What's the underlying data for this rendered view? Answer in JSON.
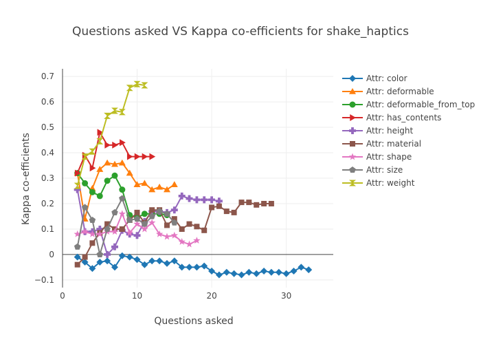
{
  "chart_data": {
    "type": "line",
    "title": "Questions asked VS Kappa co-efficients for shake_haptics",
    "xlabel": "Questions asked",
    "ylabel": "Kappa co-efficients",
    "xlim": [
      0,
      36.3
    ],
    "ylim": [
      -0.13,
      0.73
    ],
    "xticks": [
      0,
      10,
      20,
      30
    ],
    "yticks": [
      -0.1,
      0,
      0.1,
      0.2,
      0.3,
      0.4,
      0.5,
      0.6,
      0.7
    ],
    "xtick_labels": [
      "0",
      "10",
      "20",
      "30"
    ],
    "ytick_labels": [
      "−0.1",
      "0",
      "0.1",
      "0.2",
      "0.3",
      "0.4",
      "0.5",
      "0.6",
      "0.7"
    ],
    "grid": true,
    "legend": "right",
    "series": [
      {
        "name": "Attr: color",
        "color": "#1f77b4",
        "marker": "diamond",
        "x": [
          2,
          3,
          4,
          5,
          6,
          7,
          8,
          9,
          10,
          11,
          12,
          13,
          14,
          15,
          16,
          17,
          18,
          19,
          20,
          21,
          22,
          23,
          24,
          25,
          26,
          27,
          28,
          29,
          30,
          31,
          32,
          33
        ],
        "y": [
          -0.01,
          -0.03,
          -0.055,
          -0.03,
          -0.025,
          -0.05,
          -0.005,
          -0.01,
          -0.02,
          -0.04,
          -0.025,
          -0.025,
          -0.035,
          -0.025,
          -0.05,
          -0.05,
          -0.05,
          -0.045,
          -0.065,
          -0.08,
          -0.07,
          -0.075,
          -0.08,
          -0.07,
          -0.075,
          -0.065,
          -0.07,
          -0.07,
          -0.075,
          -0.065,
          -0.05,
          -0.06
        ]
      },
      {
        "name": "Attr: deformable",
        "color": "#ff7f0e",
        "marker": "triangle-up",
        "x": [
          2,
          3,
          4,
          5,
          6,
          7,
          8,
          9,
          10,
          11,
          12,
          13,
          14,
          15
        ],
        "y": [
          0.32,
          0.14,
          0.26,
          0.335,
          0.36,
          0.355,
          0.36,
          0.32,
          0.275,
          0.28,
          0.255,
          0.265,
          0.255,
          0.275
        ]
      },
      {
        "name": "Attr: deformable_from_top",
        "color": "#2ca02c",
        "marker": "circle",
        "x": [
          2,
          3,
          4,
          5,
          6,
          7,
          8,
          9,
          10,
          11,
          12,
          13,
          14
        ],
        "y": [
          0.32,
          0.28,
          0.245,
          0.23,
          0.29,
          0.31,
          0.255,
          0.155,
          0.145,
          0.16,
          0.16,
          0.16,
          0.155
        ]
      },
      {
        "name": "Attr: has_contents",
        "color": "#d62728",
        "marker": "triangle-right",
        "x": [
          2,
          3,
          4,
          5,
          6,
          7,
          8,
          9,
          10,
          11,
          12
        ],
        "y": [
          0.32,
          0.39,
          0.34,
          0.48,
          0.43,
          0.43,
          0.44,
          0.385,
          0.385,
          0.385,
          0.385
        ]
      },
      {
        "name": "Attr: height",
        "color": "#9467bd",
        "marker": "cross",
        "x": [
          2,
          3,
          4,
          5,
          6,
          7,
          8,
          9,
          10,
          11,
          12,
          13,
          14,
          15,
          16,
          17,
          18,
          19,
          20,
          21
        ],
        "y": [
          0.255,
          0.09,
          0.09,
          0.1,
          0.0,
          0.03,
          0.095,
          0.08,
          0.075,
          0.13,
          0.17,
          0.17,
          0.165,
          0.175,
          0.23,
          0.22,
          0.215,
          0.215,
          0.215,
          0.21
        ]
      },
      {
        "name": "Attr: material",
        "color": "#8c564b",
        "marker": "square",
        "x": [
          2,
          3,
          4,
          5,
          6,
          7,
          8,
          9,
          10,
          11,
          12,
          13,
          14,
          15,
          16,
          17,
          18,
          19,
          20,
          21,
          22,
          23,
          24,
          25,
          26,
          27,
          28
        ],
        "y": [
          -0.04,
          -0.01,
          0.045,
          0.085,
          0.12,
          0.1,
          0.1,
          0.135,
          0.165,
          0.125,
          0.175,
          0.175,
          0.115,
          0.14,
          0.1,
          0.12,
          0.11,
          0.095,
          0.185,
          0.19,
          0.17,
          0.165,
          0.205,
          0.205,
          0.195,
          0.2,
          0.2
        ]
      },
      {
        "name": "Attr: shape",
        "color": "#e377c2",
        "marker": "star",
        "x": [
          2,
          3,
          4,
          5,
          6,
          7,
          8,
          9,
          10,
          11,
          12,
          13,
          14,
          15,
          16,
          17,
          18
        ],
        "y": [
          0.08,
          0.09,
          0.08,
          0.08,
          0.09,
          0.09,
          0.16,
          0.085,
          0.12,
          0.1,
          0.125,
          0.08,
          0.07,
          0.075,
          0.05,
          0.04,
          0.055
        ]
      },
      {
        "name": "Attr: size",
        "color": "#7f7f7f",
        "marker": "pentagon",
        "x": [
          2,
          3,
          4,
          5,
          6,
          7,
          8,
          9,
          10,
          11,
          12,
          13,
          14,
          15
        ],
        "y": [
          0.03,
          0.185,
          0.135,
          0.0,
          0.1,
          0.165,
          0.22,
          0.135,
          0.14,
          0.12,
          0.15,
          0.17,
          0.16,
          0.125
        ]
      },
      {
        "name": "Attr: weight",
        "color": "#bcbd22",
        "marker": "hourglass",
        "x": [
          2,
          3,
          4,
          5,
          6,
          7,
          8,
          9,
          10,
          11
        ],
        "y": [
          0.27,
          0.385,
          0.405,
          0.445,
          0.545,
          0.565,
          0.56,
          0.655,
          0.67,
          0.665
        ]
      }
    ]
  }
}
